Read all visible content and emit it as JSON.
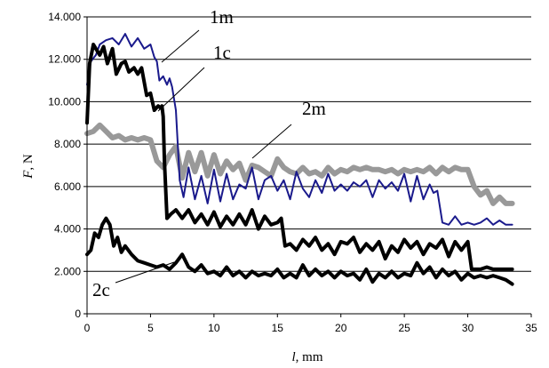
{
  "chart_data": {
    "type": "line",
    "title": "",
    "xlabel": {
      "var": "l",
      "unit": ", mm"
    },
    "ylabel": {
      "var": "F",
      "unit": ", N"
    },
    "xlim": [
      0,
      35
    ],
    "ylim": [
      0,
      14000
    ],
    "x_ticks": [
      0,
      5,
      10,
      15,
      20,
      25,
      30,
      35
    ],
    "y_ticks": [
      0,
      2000,
      4000,
      6000,
      8000,
      10000,
      12000,
      14000
    ],
    "x_tick_labels": [
      "0",
      "5",
      "10",
      "15",
      "20",
      "25",
      "30",
      "35"
    ],
    "y_tick_labels": [
      "0",
      "2.000",
      "4.000",
      "6.000",
      "8.000",
      "10.000",
      "12.000",
      "14.000"
    ],
    "grid": {
      "horizontal": true,
      "vertical": false
    },
    "series": [
      {
        "name": "1m",
        "color": "#1a1a8c",
        "x": [
          0,
          0.3,
          0.7,
          1,
          1.5,
          2,
          2.5,
          3,
          3.5,
          4,
          4.5,
          5,
          5.3,
          5.5,
          5.7,
          6,
          6.3,
          6.5,
          6.7,
          7,
          7.3,
          7.6,
          8,
          8.5,
          9,
          9.5,
          10,
          10.5,
          11,
          11.5,
          12,
          12.5,
          13,
          13.5,
          14,
          14.5,
          15,
          15.5,
          16,
          16.5,
          17,
          17.5,
          18,
          18.5,
          19,
          19.5,
          20,
          20.5,
          21,
          21.5,
          22,
          22.5,
          23,
          23.5,
          24,
          24.5,
          25,
          25.5,
          26,
          26.5,
          27,
          27.3,
          27.6,
          28,
          28.5,
          29,
          29.5,
          30,
          30.5,
          31,
          31.5,
          32,
          32.5,
          33,
          33.5
        ],
        "values": [
          10800,
          11900,
          12200,
          12700,
          12900,
          13000,
          12700,
          13200,
          12600,
          13000,
          12500,
          12700,
          12100,
          11900,
          11000,
          11200,
          10800,
          11100,
          10700,
          9600,
          6300,
          5500,
          6900,
          5400,
          6500,
          5200,
          6800,
          5300,
          6600,
          5400,
          6100,
          5900,
          6900,
          5400,
          6300,
          6500,
          5800,
          6300,
          5400,
          6700,
          5900,
          5500,
          6300,
          5700,
          6600,
          5800,
          6100,
          5800,
          6200,
          6000,
          6300,
          5500,
          6300,
          5900,
          6200,
          5800,
          6600,
          5300,
          6500,
          5400,
          6100,
          5700,
          5800,
          4300,
          4200,
          4600,
          4200,
          4300,
          4200,
          4300,
          4500,
          4200,
          4400,
          4200,
          4200
        ]
      },
      {
        "name": "1c",
        "color": "#000000",
        "x": [
          0,
          0.2,
          0.5,
          0.8,
          1,
          1.3,
          1.6,
          2,
          2.3,
          2.7,
          3,
          3.3,
          3.7,
          4,
          4.3,
          4.7,
          5,
          5.3,
          5.6,
          5.8,
          5.9,
          6,
          6.1,
          6.3,
          6.6,
          7,
          7.5,
          8,
          8.5,
          9,
          9.5,
          10,
          10.5,
          11,
          11.5,
          12,
          12.5,
          13,
          13.5,
          14,
          14.5,
          15,
          15.3,
          15.6,
          16,
          16.5,
          17,
          17.5,
          18,
          18.5,
          19,
          19.5,
          20,
          20.5,
          21,
          21.5,
          22,
          22.5,
          23,
          23.5,
          24,
          24.5,
          25,
          25.5,
          26,
          26.5,
          27,
          27.5,
          28,
          28.5,
          29,
          29.5,
          30,
          30.3,
          30.6,
          31,
          31.5,
          32,
          32.5,
          33,
          33.5
        ],
        "values": [
          9000,
          11800,
          12700,
          12400,
          12200,
          12600,
          11800,
          12500,
          11300,
          11800,
          11900,
          11400,
          11600,
          11300,
          11600,
          10300,
          10400,
          9600,
          9800,
          9700,
          9800,
          9300,
          7200,
          4500,
          4700,
          4900,
          4500,
          4900,
          4300,
          4700,
          4200,
          4800,
          4100,
          4600,
          4200,
          4700,
          4200,
          4900,
          4000,
          4600,
          4200,
          4300,
          4500,
          3200,
          3300,
          3000,
          3500,
          3200,
          3600,
          3000,
          3300,
          2800,
          3400,
          3300,
          3600,
          2900,
          3300,
          3000,
          3400,
          2600,
          3200,
          2900,
          3500,
          3100,
          3400,
          2800,
          3300,
          3100,
          3500,
          2700,
          3400,
          3000,
          3400,
          2100,
          2100,
          2100,
          2200,
          2100,
          2100,
          2100,
          2100
        ]
      },
      {
        "name": "2m",
        "color": "#999999",
        "x": [
          0,
          0.5,
          1,
          1.5,
          2,
          2.5,
          3,
          3.5,
          4,
          4.5,
          5,
          5.5,
          6,
          6.5,
          7,
          7.5,
          8,
          8.5,
          9,
          9.5,
          10,
          10.5,
          11,
          11.5,
          12,
          12.5,
          13,
          13.5,
          14,
          14.5,
          15,
          15.5,
          16,
          16.5,
          17,
          17.5,
          18,
          18.5,
          19,
          19.5,
          20,
          20.5,
          21,
          21.5,
          22,
          22.5,
          23,
          23.5,
          24,
          24.5,
          25,
          25.5,
          26,
          26.5,
          27,
          27.5,
          28,
          28.5,
          29,
          29.5,
          30,
          30.5,
          31,
          31.5,
          32,
          32.5,
          33,
          33.5
        ],
        "values": [
          8500,
          8600,
          8900,
          8600,
          8300,
          8400,
          8200,
          8300,
          8200,
          8300,
          8200,
          7200,
          6900,
          7500,
          7900,
          6400,
          7600,
          6700,
          7600,
          6500,
          7500,
          6600,
          7200,
          6800,
          7100,
          6300,
          7000,
          6900,
          6700,
          6500,
          7300,
          6900,
          6700,
          6600,
          6900,
          6600,
          6700,
          6500,
          6900,
          6600,
          6800,
          6700,
          6900,
          6800,
          6900,
          6800,
          6800,
          6700,
          6800,
          6600,
          6800,
          6700,
          6800,
          6700,
          6900,
          6600,
          6900,
          6700,
          6900,
          6800,
          6800,
          6000,
          5600,
          5800,
          5200,
          5500,
          5200,
          5200
        ]
      },
      {
        "name": "2c",
        "color": "#000000",
        "x": [
          0,
          0.3,
          0.6,
          0.9,
          1.2,
          1.5,
          1.8,
          2.1,
          2.4,
          2.7,
          3,
          3.5,
          4,
          4.5,
          5,
          5.5,
          6,
          6.5,
          7,
          7.5,
          8,
          8.5,
          9,
          9.5,
          10,
          10.5,
          11,
          11.5,
          12,
          12.5,
          13,
          13.5,
          14,
          14.5,
          15,
          15.5,
          16,
          16.5,
          17,
          17.5,
          18,
          18.5,
          19,
          19.5,
          20,
          20.5,
          21,
          21.5,
          22,
          22.5,
          23,
          23.5,
          24,
          24.5,
          25,
          25.5,
          26,
          26.5,
          27,
          27.5,
          28,
          28.5,
          29,
          29.5,
          30,
          30.5,
          31,
          31.5,
          32,
          32.5,
          33,
          33.5
        ],
        "values": [
          2800,
          3000,
          3800,
          3600,
          4200,
          4500,
          4200,
          3200,
          3600,
          2900,
          3200,
          2800,
          2500,
          2400,
          2300,
          2200,
          2300,
          2100,
          2400,
          2800,
          2200,
          2000,
          2300,
          1900,
          2000,
          1800,
          2200,
          1800,
          2000,
          1700,
          2000,
          1800,
          1900,
          1800,
          2100,
          1700,
          1900,
          1700,
          2300,
          1800,
          2100,
          1800,
          2000,
          1700,
          2000,
          1800,
          1900,
          1600,
          2100,
          1500,
          1900,
          1700,
          2000,
          1700,
          1900,
          1800,
          2400,
          1900,
          2200,
          1700,
          2100,
          1800,
          2000,
          1600,
          1900,
          1700,
          1800,
          1700,
          1800,
          1700,
          1600,
          1400
        ]
      }
    ],
    "labels": [
      {
        "series": "1m",
        "text": "1m"
      },
      {
        "series": "1c",
        "text": "1c"
      },
      {
        "series": "2m",
        "text": "2m"
      },
      {
        "series": "2c",
        "text": "2c"
      }
    ]
  }
}
